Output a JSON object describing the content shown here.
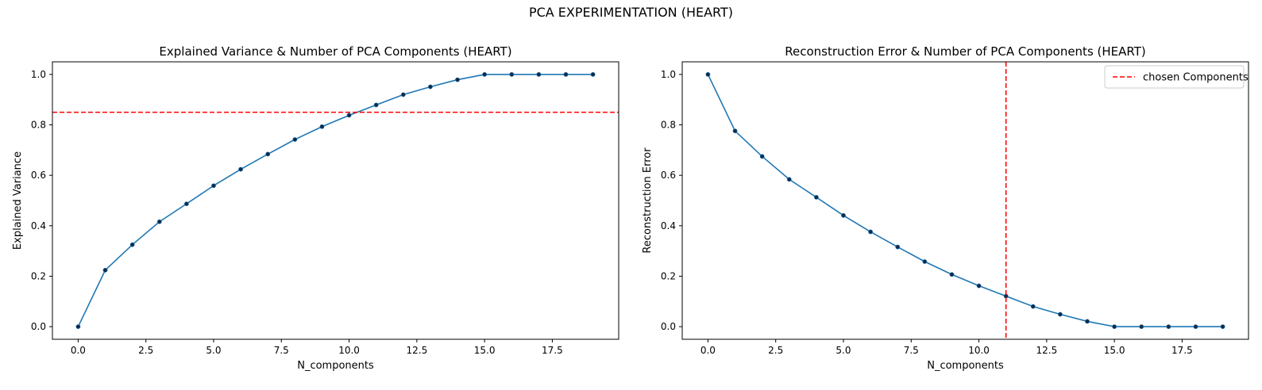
{
  "figure": {
    "suptitle": "PCA EXPERIMENTATION (HEART)"
  },
  "colors": {
    "line": "#1f77b4",
    "marker": "#0d2a4a",
    "reference": "#ff0000",
    "axes": "#000000"
  },
  "chart_data": [
    {
      "type": "line",
      "title": "Explained Variance & Number of PCA Components (HEART)",
      "xlabel": "N_components",
      "ylabel": "Explained Variance",
      "xlim": [
        -0.95,
        19.95
      ],
      "ylim": [
        -0.05,
        1.05
      ],
      "xticks": [
        0.0,
        2.5,
        5.0,
        7.5,
        10.0,
        12.5,
        15.0,
        17.5
      ],
      "xtick_labels": [
        "0.0",
        "2.5",
        "5.0",
        "7.5",
        "10.0",
        "12.5",
        "15.0",
        "17.5"
      ],
      "yticks": [
        0.0,
        0.2,
        0.4,
        0.6,
        0.8,
        1.0
      ],
      "ytick_labels": [
        "0.0",
        "0.2",
        "0.4",
        "0.6",
        "0.8",
        "1.0"
      ],
      "grid": false,
      "series": [
        {
          "x": [
            0,
            1,
            2,
            3,
            4,
            5,
            6,
            7,
            8,
            9,
            10,
            11,
            12,
            13,
            14,
            15,
            16,
            17,
            18,
            19
          ],
          "y": [
            0.0,
            0.224,
            0.325,
            0.416,
            0.487,
            0.559,
            0.624,
            0.684,
            0.742,
            0.793,
            0.838,
            0.879,
            0.92,
            0.951,
            0.979,
            1.0,
            1.0,
            1.0,
            1.0,
            1.0
          ]
        }
      ],
      "reference_line": {
        "orientation": "horizontal",
        "value": 0.85,
        "style": "dashed"
      },
      "legend": null
    },
    {
      "type": "line",
      "title": "Reconstruction Error & Number of PCA Components (HEART)",
      "xlabel": "N_components",
      "ylabel": "Reconstruction Error",
      "xlim": [
        -0.95,
        19.95
      ],
      "ylim": [
        -0.05,
        1.05
      ],
      "xticks": [
        0.0,
        2.5,
        5.0,
        7.5,
        10.0,
        12.5,
        15.0,
        17.5
      ],
      "xtick_labels": [
        "0.0",
        "2.5",
        "5.0",
        "7.5",
        "10.0",
        "12.5",
        "15.0",
        "17.5"
      ],
      "yticks": [
        0.0,
        0.2,
        0.4,
        0.6,
        0.8,
        1.0
      ],
      "ytick_labels": [
        "0.0",
        "0.2",
        "0.4",
        "0.6",
        "0.8",
        "1.0"
      ],
      "grid": false,
      "series": [
        {
          "x": [
            0,
            1,
            2,
            3,
            4,
            5,
            6,
            7,
            8,
            9,
            10,
            11,
            12,
            13,
            14,
            15,
            16,
            17,
            18,
            19
          ],
          "y": [
            1.0,
            0.776,
            0.675,
            0.584,
            0.513,
            0.441,
            0.376,
            0.316,
            0.258,
            0.207,
            0.162,
            0.121,
            0.08,
            0.049,
            0.021,
            0.0,
            0.0,
            0.0,
            0.0,
            0.0
          ]
        }
      ],
      "reference_line": {
        "orientation": "vertical",
        "value": 11,
        "style": "dashed",
        "label": "chosen Components"
      },
      "legend": {
        "placement": "top-right",
        "entries": [
          "chosen Components"
        ]
      }
    }
  ]
}
